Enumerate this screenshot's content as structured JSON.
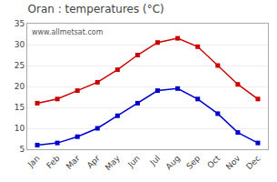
{
  "chart_data": {
    "type": "line",
    "title": "Oran : temperatures (°C)",
    "categories": [
      "Jan",
      "Feb",
      "Mar",
      "Apr",
      "May",
      "Jun",
      "Jul",
      "Aug",
      "Sep",
      "Oct",
      "Nov",
      "Dec"
    ],
    "series": [
      {
        "color": "#cc0000",
        "values": [
          16,
          17,
          19,
          21,
          24,
          27.5,
          30.5,
          31.5,
          29.5,
          25,
          20.5,
          17
        ]
      },
      {
        "color": "#0000cc",
        "values": [
          6,
          6.5,
          8,
          10,
          13,
          16,
          19,
          19.5,
          17,
          13.5,
          9,
          6.5
        ]
      }
    ],
    "marker": "square",
    "ylim": [
      5,
      35
    ],
    "yticks": [
      5,
      10,
      15,
      20,
      25,
      30,
      35
    ],
    "grid": "y",
    "annotations": [
      "www.allmetsat.com"
    ]
  }
}
